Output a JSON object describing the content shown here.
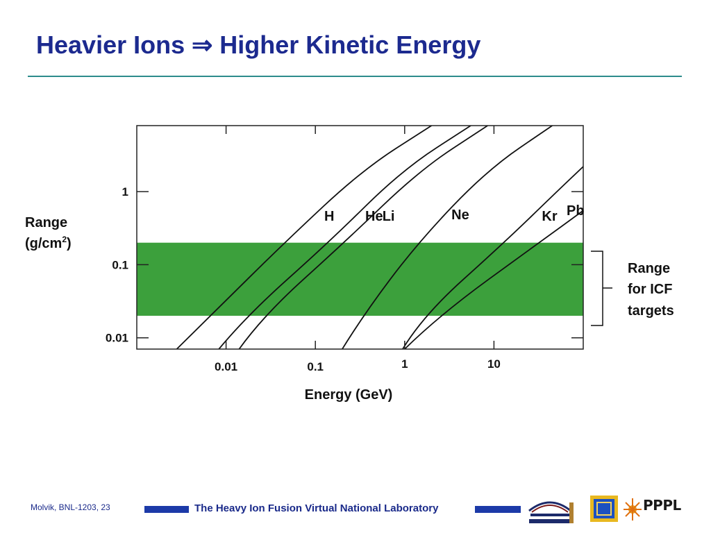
{
  "slide": {
    "title": "Heavier Ions ⇒ Higher Kinetic Energy"
  },
  "chart_data": {
    "type": "line",
    "xlabel": "Energy (GeV)",
    "ylabel_main": "Range",
    "ylabel_unit_prefix": "(g/cm",
    "ylabel_unit_sup": "2",
    "ylabel_unit_suffix": ")",
    "x_scale": "log",
    "y_scale": "log",
    "x_ticks": [
      {
        "label": "0.01",
        "value": 0.01
      },
      {
        "label": "0.1",
        "value": 0.1
      },
      {
        "label": "1",
        "value": 1
      },
      {
        "label": "10",
        "value": 10
      }
    ],
    "y_ticks": [
      {
        "label": "1",
        "value": 1
      },
      {
        "label": "0.1",
        "value": 0.1
      },
      {
        "label": "0.01",
        "value": 0.01
      }
    ],
    "xlim": [
      0.001,
      100
    ],
    "ylim": [
      0.007,
      8
    ],
    "band": {
      "ymin": 0.02,
      "ymax": 0.2,
      "color": "#3ca03c",
      "label": [
        "Range",
        "for ICF",
        "targets"
      ]
    },
    "series": [
      {
        "name": "H",
        "points": [
          [
            0.0028,
            0.007
          ],
          [
            0.0067,
            0.02
          ],
          [
            0.045,
            0.2
          ],
          [
            0.34,
            2
          ],
          [
            2.0,
            8
          ]
        ]
      },
      {
        "name": "He",
        "points": [
          [
            0.0083,
            0.007
          ],
          [
            0.017,
            0.02
          ],
          [
            0.14,
            0.2
          ],
          [
            0.95,
            2
          ],
          [
            5.5,
            8
          ]
        ]
      },
      {
        "name": "Li",
        "points": [
          [
            0.014,
            0.007
          ],
          [
            0.026,
            0.02
          ],
          [
            0.21,
            0.2
          ],
          [
            1.5,
            2
          ],
          [
            8.5,
            8
          ]
        ]
      },
      {
        "name": "Ne",
        "points": [
          [
            0.2,
            0.007
          ],
          [
            0.34,
            0.02
          ],
          [
            1.4,
            0.2
          ],
          [
            8.5,
            2
          ],
          [
            45,
            8
          ]
        ]
      },
      {
        "name": "Kr",
        "points": [
          [
            0.95,
            0.007
          ],
          [
            1.6,
            0.02
          ],
          [
            13,
            0.2
          ],
          [
            55,
            1.1
          ],
          [
            100,
            2.2
          ]
        ]
      },
      {
        "name": "Pb",
        "points": [
          [
            1.0,
            0.007
          ],
          [
            2.4,
            0.02
          ],
          [
            32,
            0.2
          ],
          [
            100,
            0.55
          ]
        ]
      }
    ],
    "series_line_color": "#111111"
  },
  "footer": {
    "author": "Molvik,  BNL-1203, 23",
    "lab_text": "The Heavy Ion Fusion Virtual National Laboratory",
    "pppl_text": "PPPL",
    "accent": "#1c3aa8"
  }
}
